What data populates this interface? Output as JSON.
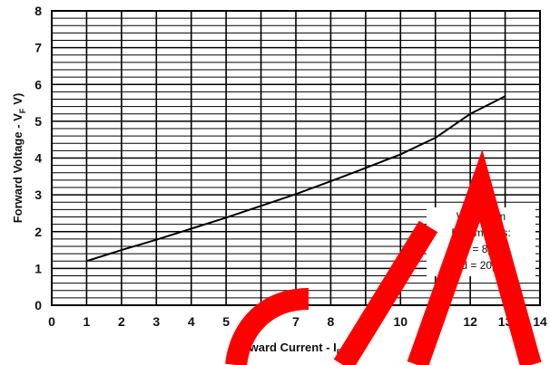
{
  "chart_data": {
    "type": "line",
    "xlabel": "Forward Current - I",
    "xlabel_sub": "F",
    "xlabel_unit": "(A)",
    "ylabel": "Forward Voltage - V",
    "ylabel_sub": "F",
    "ylabel_unit": "V)",
    "xlim": [
      0,
      14
    ],
    "ylim": [
      0,
      8
    ],
    "x_ticks": [
      "0",
      "1",
      "2",
      "3",
      "4",
      "5",
      "6",
      "7",
      "8",
      "9",
      "10",
      "11",
      "12",
      "13",
      "14"
    ],
    "y_ticks": [
      "0",
      "1",
      "2",
      "3",
      "4",
      "5",
      "6",
      "7",
      "8"
    ],
    "grid": true,
    "legend_position": "none",
    "series": [
      {
        "x": [
          1,
          2,
          3,
          4,
          5,
          6,
          7,
          8,
          9,
          10,
          11,
          12,
          13
        ],
        "y": [
          1.2,
          1.5,
          1.78,
          2.08,
          2.38,
          2.7,
          3.02,
          3.37,
          3.73,
          4.1,
          4.55,
          5.2,
          5.68
        ]
      }
    ],
    "annotation": {
      "lines": [
        "Waveform",
        "Parameters:",
        "tr = 8µs",
        "td = 20µs"
      ]
    },
    "colors": {
      "grid": "#000000",
      "line": "#000000",
      "background": "#ffffff",
      "overlay_mark": "#ff0000"
    }
  }
}
